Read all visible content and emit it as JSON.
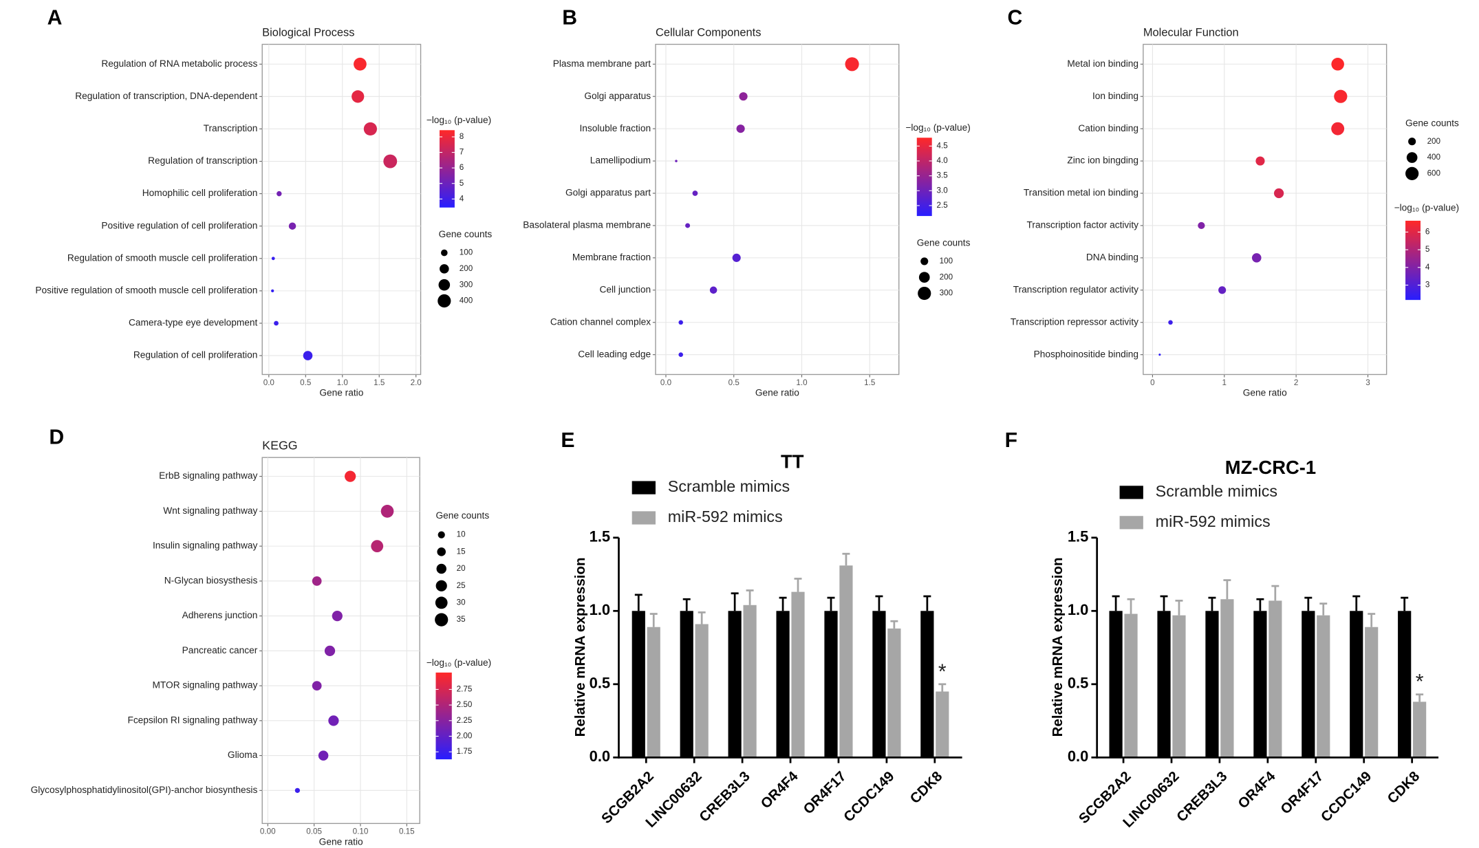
{
  "chart_data": [
    {
      "panel": "A",
      "type": "bubble",
      "title": "Biological Process",
      "xlabel": "Gene ratio",
      "categories": [
        "Regulation of RNA metabolic process",
        "Regulation of transcription, DNA-dependent",
        "Transcription",
        "Regulation of transcription",
        "Homophilic cell proliferation",
        "Positive regulation of cell proliferation",
        "Regulation of smooth muscle cell proliferation",
        "Positive regulation of smooth muscle cell proliferation",
        "Camera-type eye development",
        "Regulation of cell proliferation"
      ],
      "x": [
        1.24,
        1.21,
        1.38,
        1.65,
        0.14,
        0.32,
        0.06,
        0.05,
        0.1,
        0.53
      ],
      "sizes": [
        380,
        360,
        400,
        430,
        60,
        120,
        25,
        20,
        50,
        200
      ],
      "color_values": [
        8.3,
        7.8,
        7.5,
        7.2,
        5.2,
        5.3,
        3.8,
        3.7,
        3.9,
        3.9
      ],
      "xlim": [
        -0.09,
        2.064
      ],
      "xticks": [
        {
          "value": 0,
          "label": "0.0"
        },
        0.5,
        {
          "value": 1,
          "label": "1.0"
        },
        1.5,
        {
          "value": 2,
          "label": "2.0"
        }
      ],
      "grid": true,
      "size_legend": {
        "title": "Gene counts",
        "values": [
          100,
          200,
          300,
          400
        ]
      },
      "color_legend": {
        "title": "−log₁₀ (p-value)",
        "clim": [
          3.45,
          8.43
        ],
        "ticks": [
          8,
          7,
          6,
          5,
          4
        ]
      }
    },
    {
      "panel": "B",
      "type": "bubble",
      "title": "Cellular Components",
      "xlabel": "Gene ratio",
      "categories": [
        "Plasma membrane part",
        "Golgi apparatus",
        "Insoluble fraction",
        "Lamellipodium",
        "Golgi apparatus part",
        "Basolateral plasma membrane",
        "Membrane fraction",
        "Cell junction",
        "Cation channel complex",
        "Cell leading edge"
      ],
      "x": [
        1.37,
        0.57,
        0.55,
        0.076,
        0.215,
        0.16,
        0.52,
        0.35,
        0.11,
        0.11
      ],
      "sizes": [
        330,
        120,
        120,
        10,
        50,
        40,
        120,
        90,
        35,
        35
      ],
      "color_values": [
        4.7,
        3.4,
        3.3,
        3.0,
        2.9,
        2.9,
        2.7,
        2.8,
        2.4,
        2.4
      ],
      "xlim": [
        -0.076,
        1.715
      ],
      "xticks": [
        {
          "value": 0,
          "label": "0.0"
        },
        0.5,
        {
          "value": 1,
          "label": "1.0"
        },
        1.5
      ],
      "grid": true,
      "size_legend": {
        "title": "Gene counts",
        "values": [
          100,
          200,
          300
        ]
      },
      "color_legend": {
        "title": "−log₁₀ (p-value)",
        "clim": [
          2.15,
          4.78
        ],
        "ticks": [
          4.5,
          {
            "value": 4,
            "label": "4.0"
          },
          3.5,
          {
            "value": 3,
            "label": "3.0"
          },
          2.5
        ]
      }
    },
    {
      "panel": "C",
      "type": "bubble",
      "title": "Molecular Function",
      "xlabel": "Gene ratio",
      "categories": [
        "Metal ion binding",
        "Ion binding",
        "Cation binding",
        "Zinc ion bingding",
        "Transition metal ion binding",
        "Transcription factor activity",
        "DNA binding",
        "Transcription regulator activity",
        "Transcription repressor activity",
        "Phosphoinositide binding"
      ],
      "x": [
        2.58,
        2.62,
        2.58,
        1.5,
        1.76,
        0.68,
        1.45,
        0.97,
        0.25,
        0.1
      ],
      "sizes": [
        560,
        600,
        580,
        280,
        330,
        170,
        300,
        200,
        70,
        15
      ],
      "color_values": [
        6.6,
        6.5,
        6.4,
        6.0,
        5.8,
        4.0,
        3.8,
        3.4,
        2.6,
        2.3
      ],
      "xlim": [
        -0.13,
        3.26
      ],
      "xticks": [
        0,
        1,
        2,
        3
      ],
      "grid": true,
      "size_legend": {
        "title": "Gene counts",
        "values": [
          200,
          400,
          600
        ]
      },
      "color_legend": {
        "title": "−log₁₀ (p-value)",
        "clim": [
          2.16,
          6.64
        ],
        "ticks": [
          6,
          5,
          4,
          3
        ]
      }
    },
    {
      "panel": "D",
      "type": "bubble",
      "title": "KEGG",
      "xlabel": "Gene ratio",
      "categories": [
        "ErbB signaling pathway",
        "Wnt signaling pathway",
        "Insulin signaling pathway",
        "N-Glycan biosysthesis",
        "Adherens junction",
        "Pancreatic cancer",
        "MTOR signaling pathway",
        "Fcepsilon RI signaling pathway",
        "Glioma",
        "Glycosylphosphatidylinositol(GPI)-anchor biosynthesis"
      ],
      "x": [
        0.089,
        0.129,
        0.118,
        0.053,
        0.075,
        0.067,
        0.053,
        0.071,
        0.06,
        0.032
      ],
      "sizes": [
        25,
        33,
        30,
        18,
        22,
        22,
        18,
        22,
        20,
        5
      ],
      "color_values": [
        2.95,
        2.5,
        2.55,
        2.4,
        2.2,
        2.2,
        2.2,
        2.1,
        2.1,
        1.75
      ],
      "xlim": [
        -0.006,
        0.164
      ],
      "xticks": [
        {
          "value": 0,
          "label": "0.00"
        },
        0.05,
        {
          "value": 0.1,
          "label": "0.10"
        },
        0.15
      ],
      "grid": true,
      "size_legend": {
        "title": "Gene counts",
        "values": [
          10,
          15,
          20,
          25,
          30,
          35
        ]
      },
      "color_legend": {
        "title": "−log₁₀ (p-value)",
        "clim": [
          1.63,
          3.02
        ],
        "ticks": [
          2.75,
          {
            "value": 2.5,
            "label": "2.50"
          },
          2.25,
          {
            "value": 2,
            "label": "2.00"
          },
          1.75
        ]
      }
    },
    {
      "panel": "E",
      "type": "bar",
      "title": "TT",
      "ylabel": "Relative mRNA expression",
      "categories": [
        "SCGB2A2",
        "LINC00632",
        "CREB3L3",
        "OR4F4",
        "OR4F17",
        "CCDC149",
        "CDK8"
      ],
      "series": [
        {
          "name": "Scramble mimics",
          "color": "#000000",
          "values": [
            1,
            1,
            1,
            1,
            1,
            1,
            1
          ],
          "errors": [
            0.11,
            0.08,
            0.12,
            0.09,
            0.09,
            0.1,
            0.1
          ]
        },
        {
          "name": "miR-592 mimics",
          "color": "#a6a6a6",
          "values": [
            0.89,
            0.91,
            1.04,
            1.13,
            1.31,
            0.88,
            0.45
          ],
          "errors": [
            0.09,
            0.08,
            0.1,
            0.09,
            0.08,
            0.05,
            0.05
          ]
        }
      ],
      "ylim": [
        0,
        1.5
      ],
      "yticks": [
        {
          "value": 0,
          "label": "0.0"
        },
        0.5,
        {
          "value": 1,
          "label": "1.0"
        },
        1.5
      ],
      "annotations": [
        {
          "text": "*",
          "series": 1,
          "category": 6
        }
      ]
    },
    {
      "panel": "F",
      "type": "bar",
      "title": "MZ-CRC-1",
      "ylabel": "Relative mRNA expression",
      "categories": [
        "SCGB2A2",
        "LINC00632",
        "CREB3L3",
        "OR4F4",
        "OR4F17",
        "CCDC149",
        "CDK8"
      ],
      "series": [
        {
          "name": "Scramble mimics",
          "color": "#000000",
          "values": [
            1,
            1,
            1,
            1,
            1,
            1,
            1
          ],
          "errors": [
            0.1,
            0.1,
            0.09,
            0.08,
            0.09,
            0.1,
            0.09
          ]
        },
        {
          "name": "miR-592 mimics",
          "color": "#a6a6a6",
          "values": [
            0.98,
            0.97,
            1.08,
            1.07,
            0.97,
            0.89,
            0.38
          ],
          "errors": [
            0.1,
            0.1,
            0.13,
            0.1,
            0.08,
            0.09,
            0.05
          ]
        }
      ],
      "ylim": [
        0,
        1.5
      ],
      "yticks": [
        {
          "value": 0,
          "label": "0.0"
        },
        0.5,
        {
          "value": 1,
          "label": "1.0"
        },
        1.5
      ],
      "annotations": [
        {
          "text": "*",
          "series": 1,
          "category": 6
        }
      ]
    }
  ]
}
